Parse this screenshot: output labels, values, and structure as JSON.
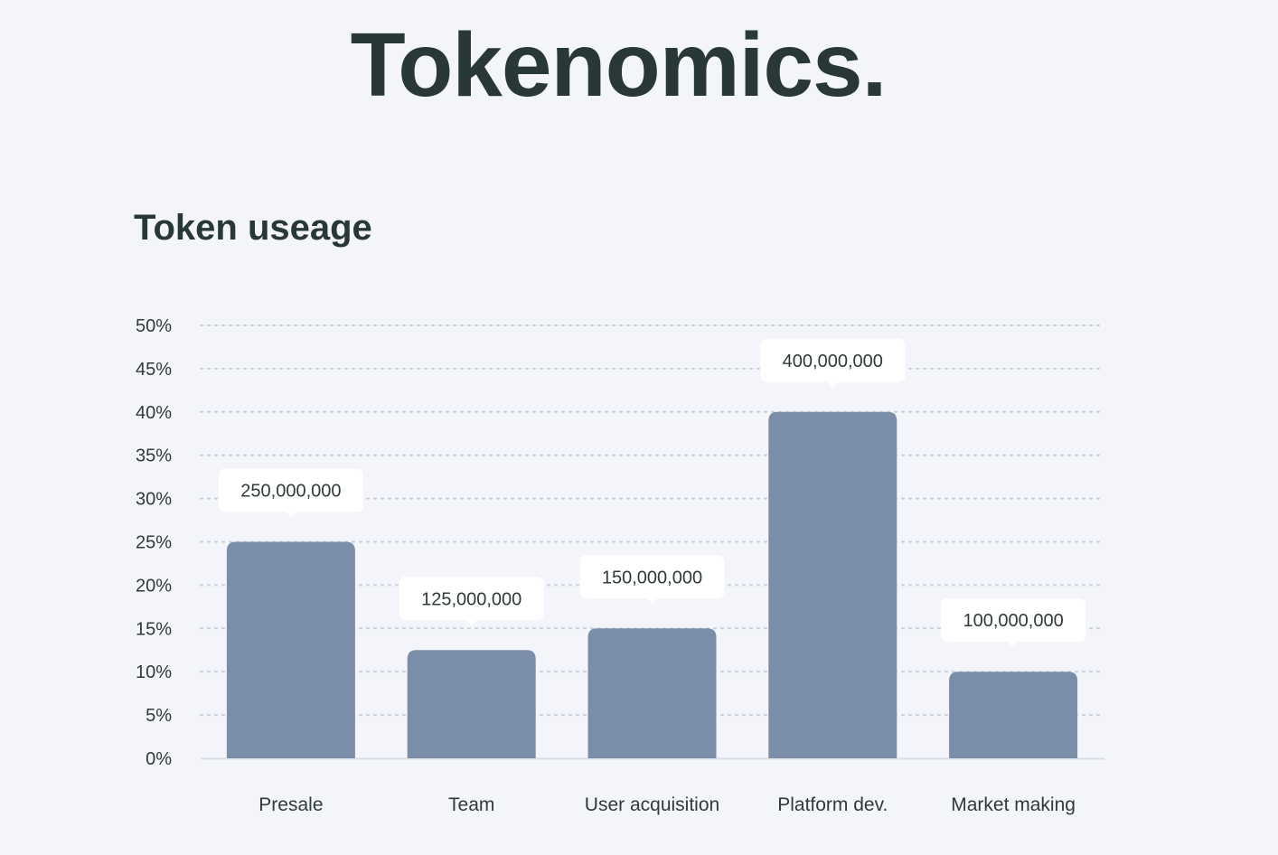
{
  "page": {
    "title": "Tokenomics."
  },
  "chart_data": {
    "type": "bar",
    "title": "Token useage",
    "xlabel": "",
    "ylabel": "",
    "categories": [
      "Presale",
      "Team",
      "User acquisition",
      "Platform dev.",
      "Market making"
    ],
    "values": [
      25,
      12.5,
      15,
      40,
      10
    ],
    "data_labels": [
      "250,000,000",
      "125,000,000",
      "150,000,000",
      "400,000,000",
      "100,000,000"
    ],
    "ylim": [
      0,
      50
    ],
    "yticks": [
      0,
      5,
      10,
      15,
      20,
      25,
      30,
      35,
      40,
      45,
      50
    ],
    "ytick_labels": [
      "0%",
      "5%",
      "10%",
      "15%",
      "20%",
      "25%",
      "30%",
      "35%",
      "40%",
      "45%",
      "50%"
    ],
    "grid": true,
    "legend": "none",
    "colors": {
      "bar": "#7b8ea9",
      "grid": "#c9ccd6",
      "axis": "#d9dde6",
      "label_box": "#ffffff",
      "text": "#2f3a3a",
      "title": "#283838"
    }
  }
}
